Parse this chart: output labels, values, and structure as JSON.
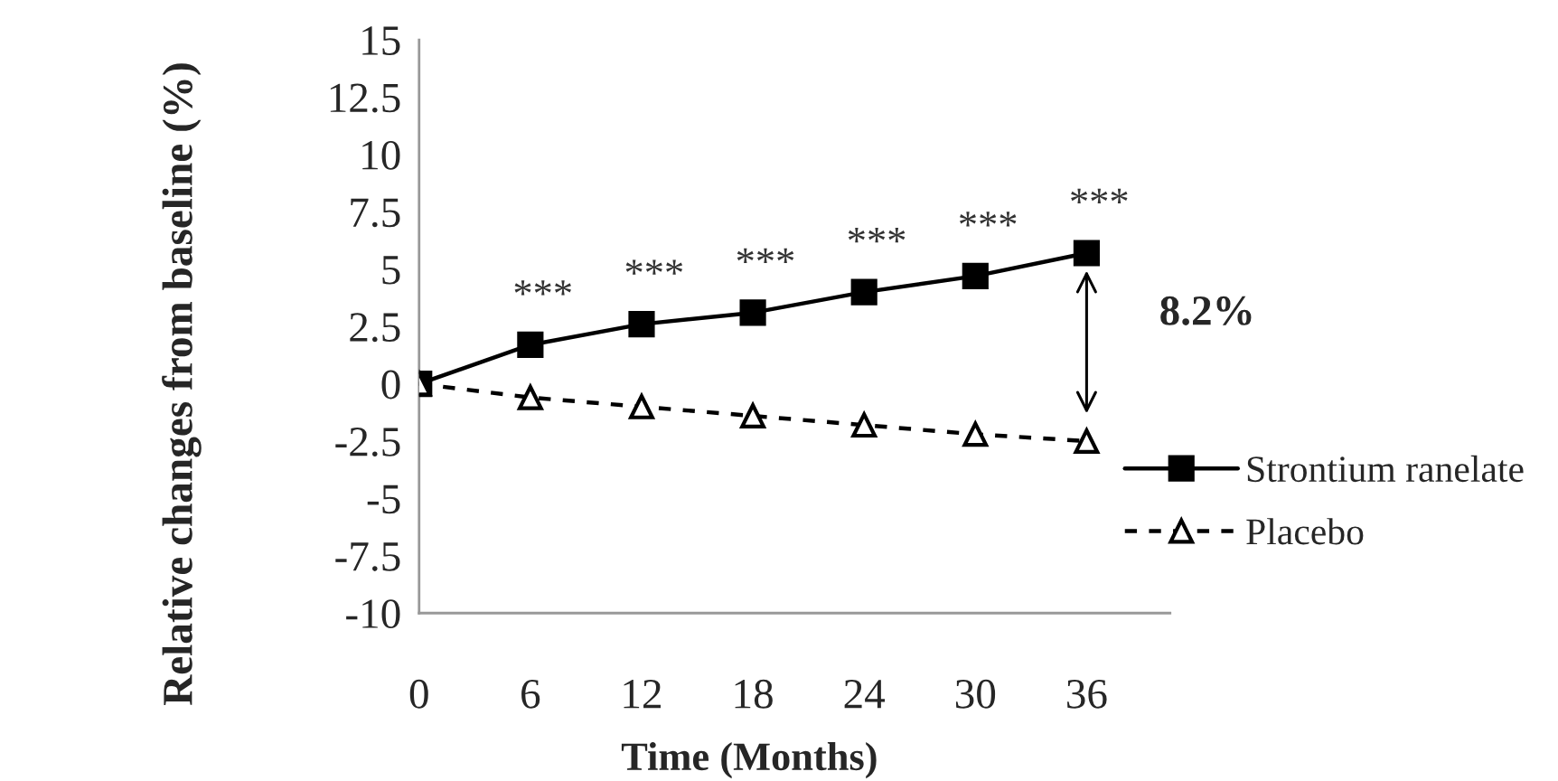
{
  "chart_data": {
    "type": "line",
    "xlabel": "Time (Months)",
    "ylabel": "Relative changes from baseline (%)",
    "x": [
      0,
      6,
      12,
      18,
      24,
      30,
      36
    ],
    "xlim": [
      0,
      40.5
    ],
    "xticks": [
      0,
      6,
      12,
      18,
      24,
      30,
      36
    ],
    "ylim": [
      -10,
      15
    ],
    "yticks": [
      -10,
      -7.5,
      -5,
      -2.5,
      0,
      2.5,
      5,
      7.5,
      10,
      12.5,
      15
    ],
    "series": [
      {
        "name": "Strontium ranelate",
        "color": "#000000",
        "values": [
          0,
          1.7,
          2.6,
          3.1,
          4.0,
          4.7,
          5.7
        ],
        "marker": "square",
        "line_style": "solid"
      },
      {
        "name": "Placebo",
        "color": "#000000",
        "values": [
          0,
          -0.6,
          -1.0,
          -1.4,
          -1.8,
          -2.2,
          -2.5
        ],
        "marker": "triangle",
        "line_style": "dashed"
      }
    ],
    "annotations": [
      {
        "text": "***",
        "x": 6,
        "y": 1.7
      },
      {
        "text": "***",
        "x": 12,
        "y": 2.6
      },
      {
        "text": "***",
        "x": 18,
        "y": 3.1
      },
      {
        "text": "***",
        "x": 24,
        "y": 4.0
      },
      {
        "text": "***",
        "x": 30,
        "y": 4.7
      },
      {
        "text": "***",
        "x": 36,
        "y": 5.7
      },
      "8.2%"
    ],
    "legend": "right",
    "grid": false
  }
}
